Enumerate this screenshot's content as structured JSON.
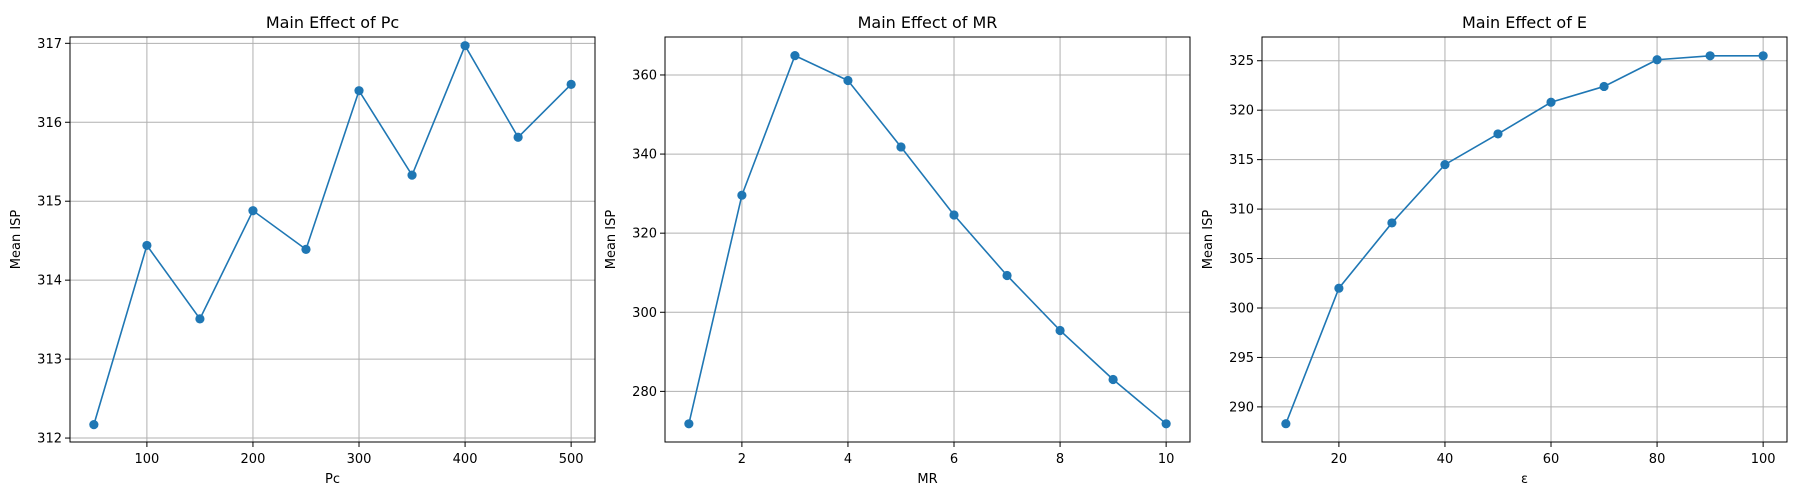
{
  "chart_data": [
    {
      "type": "line",
      "title": "Main Effect of Pc",
      "xlabel": "Pc",
      "ylabel": "Mean ISP",
      "x": [
        50,
        100,
        150,
        200,
        250,
        300,
        350,
        400,
        450,
        500
      ],
      "y": [
        312.17,
        314.44,
        313.51,
        314.88,
        314.39,
        316.4,
        315.33,
        316.97,
        315.81,
        316.48
      ],
      "xlim": [
        27.5,
        522.5
      ],
      "ylim": [
        311.95,
        317.08
      ],
      "xticks": [
        100,
        200,
        300,
        400,
        500
      ],
      "yticks": [
        312,
        313,
        314,
        315,
        316,
        317
      ],
      "grid": true,
      "color": "#1f77b4"
    },
    {
      "type": "line",
      "title": "Main Effect of MR",
      "xlabel": "MR",
      "ylabel": "Mean ISP",
      "x": [
        1,
        2,
        3,
        4,
        5,
        6,
        7,
        8,
        9,
        10
      ],
      "y": [
        271.8,
        329.6,
        364.9,
        358.6,
        341.8,
        324.6,
        309.3,
        295.4,
        283.0,
        271.8
      ],
      "xlim": [
        0.55,
        10.45
      ],
      "ylim": [
        267.2,
        369.6
      ],
      "xticks": [
        2,
        4,
        6,
        8,
        10
      ],
      "yticks": [
        280,
        300,
        320,
        340,
        360
      ],
      "grid": true,
      "color": "#1f77b4"
    },
    {
      "type": "line",
      "title": "Main Effect of E",
      "xlabel": "ε",
      "ylabel": "Mean ISP",
      "x": [
        10,
        20,
        30,
        40,
        50,
        60,
        70,
        80,
        90,
        100
      ],
      "y": [
        288.3,
        302.0,
        308.6,
        314.5,
        317.6,
        320.8,
        322.4,
        325.1,
        325.5,
        325.5
      ],
      "xlim": [
        5.5,
        104.5
      ],
      "ylim": [
        286.45,
        327.4
      ],
      "xticks": [
        20,
        40,
        60,
        80,
        100
      ],
      "yticks": [
        290,
        295,
        300,
        305,
        310,
        315,
        320,
        325
      ],
      "grid": true,
      "color": "#1f77b4"
    }
  ]
}
